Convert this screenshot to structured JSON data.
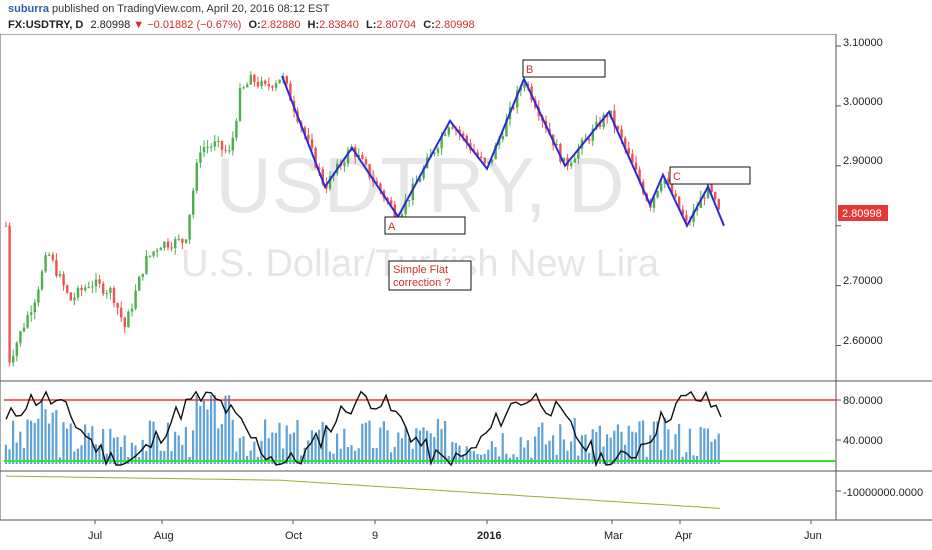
{
  "header": {
    "publisher_user": "suburra",
    "publisher_rest": " published on TradingView.com, April 20, 2016 08:12 EST",
    "symbol": "FX:USDTRY, D",
    "last": "2.80998",
    "change": "−0.01882 (−0.67%)",
    "o_label": "O:",
    "o_value": "2.82880",
    "h_label": "H:",
    "h_value": "2.83840",
    "l_label": "L:",
    "l_value": "2.80704",
    "c_label": "C:",
    "c_value": "2.80998",
    "colors": {
      "down": "#d32f2f",
      "user": "#2962a8"
    }
  },
  "watermark": {
    "symbol": "USDTRY, D",
    "description": "U.S. Dollar/Turkish New Lira"
  },
  "chart_data": [
    {
      "type": "candlestick",
      "panel": "price",
      "y_ticks": [
        2.6,
        2.7,
        2.8,
        2.9,
        3.0,
        3.1
      ],
      "y_tick_labels": [
        "2.60000",
        "2.70000",
        "2.80000",
        "2.90000",
        "3.00000",
        "3.10000"
      ],
      "ylim": [
        2.545,
        3.105
      ],
      "x_tick_labels": [
        "Jul",
        "Aug",
        "Oct",
        "9",
        "2016",
        "Mar",
        "Apr",
        "Jun"
      ],
      "last_price_label": "2.80998",
      "colors": {
        "up": "#4caf50",
        "down": "#ef5350",
        "pattern": "#2b2bd6",
        "price_badge": "#e53935"
      },
      "pattern_points": [
        {
          "t": 282,
          "p": 3.05
        },
        {
          "t": 325,
          "p": 2.865
        },
        {
          "t": 352,
          "p": 2.93
        },
        {
          "t": 398,
          "p": 2.815
        },
        {
          "t": 450,
          "p": 2.975
        },
        {
          "t": 487,
          "p": 2.895
        },
        {
          "t": 524,
          "p": 3.045
        },
        {
          "t": 565,
          "p": 2.9
        },
        {
          "t": 609,
          "p": 2.99
        },
        {
          "t": 650,
          "p": 2.835
        },
        {
          "t": 663,
          "p": 2.885
        },
        {
          "t": 687,
          "p": 2.8
        },
        {
          "t": 708,
          "p": 2.865
        },
        {
          "t": 724,
          "p": 2.8
        }
      ],
      "annotations": [
        {
          "id": "B",
          "label": "B",
          "t": 524,
          "p": 3.045
        },
        {
          "id": "A",
          "label": "A",
          "t": 398,
          "p": 2.815
        },
        {
          "id": "C",
          "label": "C",
          "t": 670,
          "p": 2.87
        }
      ],
      "note": "Simple Flat\ncorrection ?"
    },
    {
      "type": "bar+line",
      "panel": "oscillator",
      "y_tick_labels": [
        "80.0000",
        "40.0000"
      ],
      "y_ticks": [
        80,
        40
      ],
      "ylim": [
        0,
        100
      ],
      "levels": [
        {
          "value": 80,
          "color": "#e53935"
        },
        {
          "value": 12,
          "color": "#2ee82e"
        }
      ],
      "colors": {
        "bars": "#5ea2d6",
        "line": "#111111"
      }
    },
    {
      "type": "line",
      "panel": "volume-cumulative",
      "y_tick_labels": [
        "-10000000.0000"
      ],
      "colors": {
        "line": "#9ea836"
      }
    }
  ]
}
